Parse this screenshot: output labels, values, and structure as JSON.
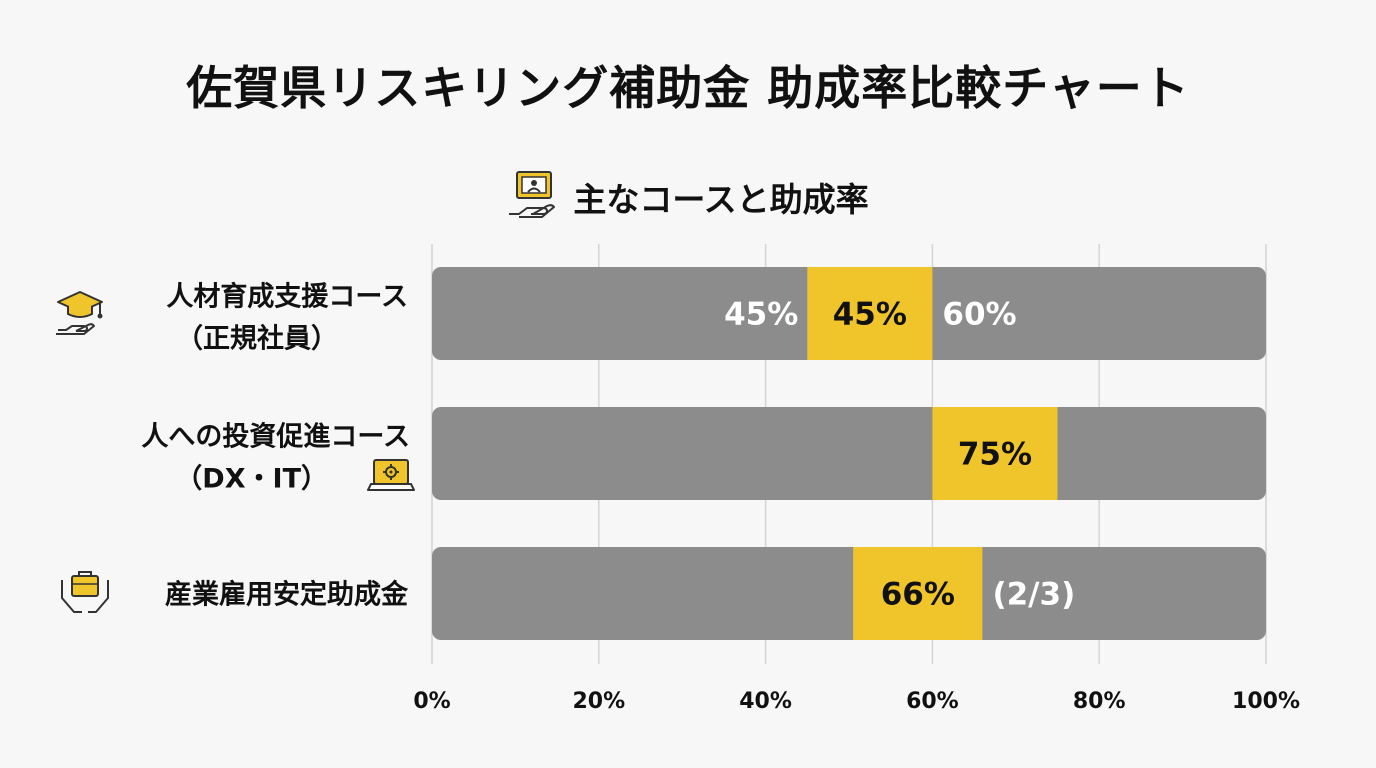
{
  "title": "佐賀県リスキリング補助金 助成率比較チャート",
  "subtitle": "主なコースと助成率",
  "colors": {
    "track": "#8c8c8c",
    "highlight": "#f0c52b",
    "text_on_track": "#ffffff",
    "text_on_highlight": "#111111",
    "grid": "#d4d4d4"
  },
  "icons": {
    "subtitle": "presentation-hand-icon",
    "rows": [
      "graduation-cap-hand-icon",
      "laptop-gear-icon",
      "briefcase-hands-icon"
    ]
  },
  "chart_data": {
    "type": "bar",
    "orientation": "horizontal",
    "title": "佐賀県リスキリング補助金 助成率比較チャート",
    "subtitle": "主なコースと助成率",
    "xlim": [
      0,
      100
    ],
    "x_ticks": [
      "0%",
      "20%",
      "40%",
      "60%",
      "80%",
      "100%"
    ],
    "grid": true,
    "categories": [
      {
        "lines": [
          "人材育成支援コース",
          "（正規社員）"
        ]
      },
      {
        "lines": [
          "人への投資促進コース",
          "（DX・IT）"
        ]
      },
      {
        "lines": [
          "産業雇用安定助成金"
        ]
      }
    ],
    "highlights": [
      {
        "start": 45,
        "end": 60
      },
      {
        "start": 60,
        "end": 75
      },
      {
        "start": 50.5,
        "end": 66
      }
    ],
    "annotations": [
      [
        {
          "text": "45%",
          "at": 45,
          "side": "left",
          "tone": "track"
        },
        {
          "text": "45%",
          "at": 52.5,
          "side": "center",
          "tone": "highlight"
        },
        {
          "text": "60%",
          "at": 60,
          "side": "right",
          "tone": "track"
        }
      ],
      [
        {
          "text": "75%",
          "at": 67.5,
          "side": "center",
          "tone": "highlight"
        }
      ],
      [
        {
          "text": "66%",
          "at": 58.25,
          "side": "center",
          "tone": "highlight"
        },
        {
          "text": "(2/3)",
          "at": 66,
          "side": "right",
          "tone": "track"
        }
      ]
    ]
  }
}
